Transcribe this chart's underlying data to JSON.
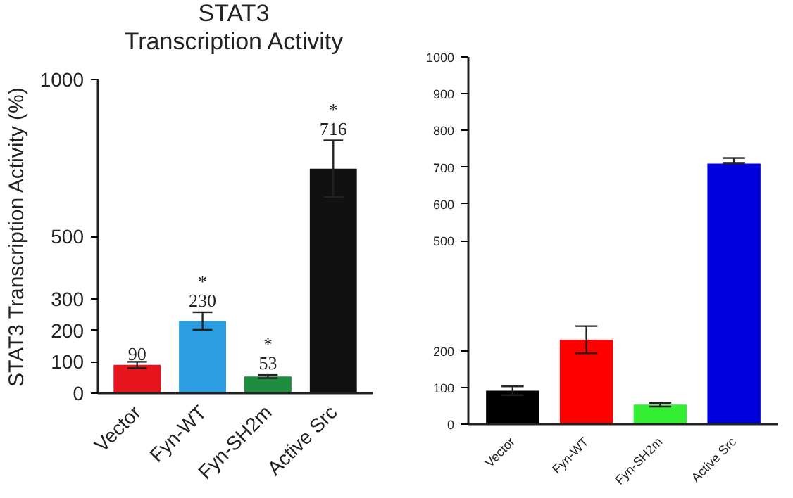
{
  "chart_data": [
    {
      "type": "bar",
      "title": "STAT3\nTranscription Activity",
      "ylabel": "STAT3 Transcription Activity (%)",
      "categories": [
        "Vector",
        "Fyn-WT",
        "Fyn-SH2m",
        "Active Src"
      ],
      "colors": [
        "#e8141e",
        "#2b9de0",
        "#1e8e3e",
        "#111111"
      ],
      "values": [
        90,
        230,
        53,
        716
      ],
      "errors": [
        10,
        28,
        5,
        90
      ],
      "value_labels": [
        "90",
        "*\n230",
        "*\n53",
        "*\n716"
      ],
      "ylim": [
        0,
        1000
      ],
      "yticks": [
        0,
        100,
        200,
        300,
        500,
        1000
      ]
    },
    {
      "type": "bar",
      "categories": [
        "Vector",
        "Fyn-WT",
        "Fyn-SH2m",
        "Active Src"
      ],
      "colors": [
        "#000000",
        "#ff0000",
        "#33ee33",
        "#0000dd"
      ],
      "values": [
        91,
        230,
        53,
        710
      ],
      "errors": [
        12,
        37,
        5,
        [
          710,
          725
        ]
      ],
      "ylim": [
        0,
        1000
      ],
      "yticks": [
        0,
        100,
        200,
        500,
        600,
        700,
        800,
        900,
        1000
      ]
    }
  ]
}
